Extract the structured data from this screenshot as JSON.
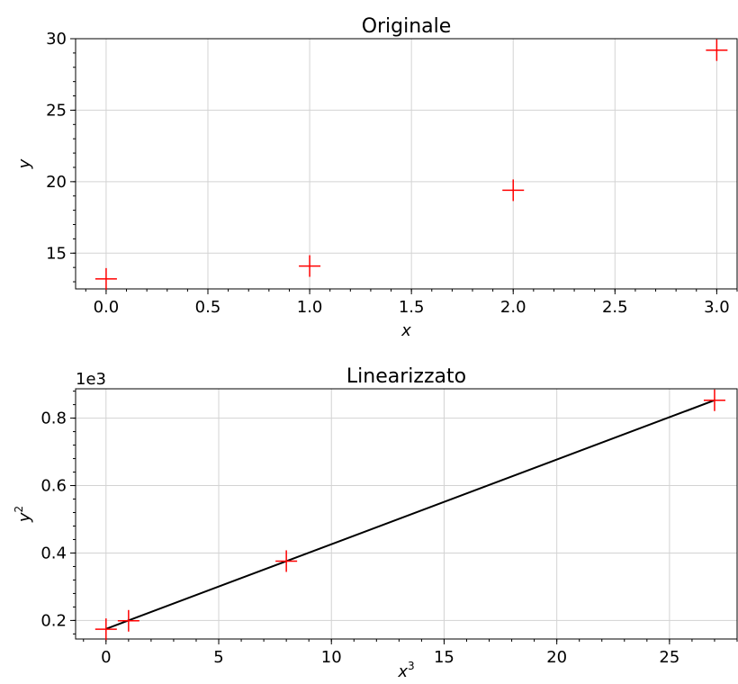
{
  "chart_data": [
    {
      "type": "scatter",
      "title": "Originale",
      "xlabel": "x",
      "ylabel": "y",
      "xlim": [
        -0.15,
        3.1
      ],
      "ylim": [
        12.5,
        30.0
      ],
      "xticks": [
        0.0,
        0.5,
        1.0,
        1.5,
        2.0,
        2.5,
        3.0
      ],
      "xtick_labels": [
        "0.0",
        "0.5",
        "1.0",
        "1.5",
        "2.0",
        "2.5",
        "3.0"
      ],
      "yticks": [
        15,
        20,
        25,
        30
      ],
      "ytick_labels": [
        "15",
        "20",
        "25",
        "30"
      ],
      "grid": true,
      "marker_color": "#ff0000",
      "series": [
        {
          "x": [
            0,
            1,
            2,
            3
          ],
          "y": [
            13.2,
            14.1,
            19.4,
            29.2
          ]
        }
      ]
    },
    {
      "type": "scatter",
      "title": "Linearizzato",
      "xlabel": "x",
      "xlabel_superscript": "3",
      "ylabel": "y",
      "ylabel_superscript": "2",
      "y_offset_label": "1e3",
      "xlim": [
        -1.35,
        28.0
      ],
      "ylim": [
        0.145,
        0.887
      ],
      "xticks": [
        0,
        5,
        10,
        15,
        20,
        25
      ],
      "xtick_labels": [
        "0",
        "5",
        "10",
        "15",
        "20",
        "25"
      ],
      "yticks": [
        0.2,
        0.4,
        0.6,
        0.8
      ],
      "ytick_labels": [
        "0.2",
        "0.4",
        "0.6",
        "0.8"
      ],
      "grid": true,
      "marker_color": "#ff0000",
      "line_color": "#000000",
      "series": [
        {
          "x": [
            0,
            1,
            8,
            27
          ],
          "y": [
            0.174,
            0.199,
            0.376,
            0.853
          ]
        }
      ],
      "fit_line": {
        "x": [
          0,
          27
        ],
        "y": [
          0.175,
          0.853
        ]
      }
    }
  ]
}
